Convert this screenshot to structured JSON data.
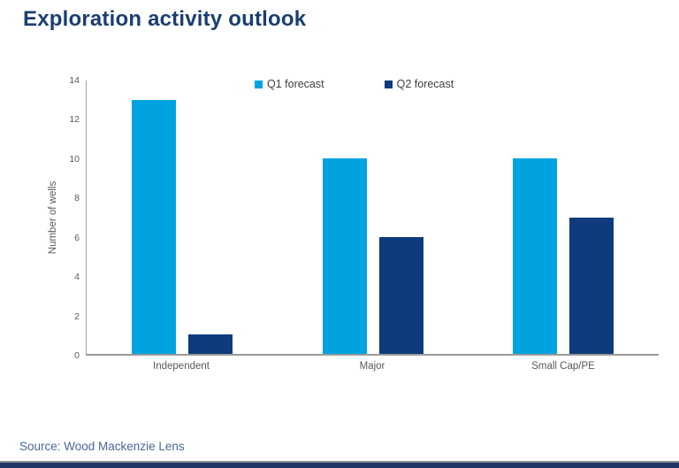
{
  "title": "Exploration activity outlook",
  "source": "Source: Wood Mackenzie Lens",
  "colors": {
    "title_navy": "#1a3e72",
    "q1_light_blue": "#00a3e0",
    "q2_dark_navy": "#0d3b7d",
    "axis_gray": "#9a9a9a",
    "text_gray": "#595959",
    "source_blue": "#47689a",
    "footer_strip_navy": "#1f3563"
  },
  "chart_data": {
    "type": "bar",
    "title": "Exploration activity outlook",
    "categories": [
      "Independent",
      "Major",
      "Small Cap/PE"
    ],
    "series": [
      {
        "name": "Q1 forecast",
        "color": "#00a3e0",
        "values": [
          13,
          10,
          10
        ]
      },
      {
        "name": "Q2 forecast",
        "color": "#0d3b7d",
        "values": [
          1,
          6,
          7
        ]
      }
    ],
    "xlabel": "",
    "ylabel": "Number of wells",
    "ylim": [
      0,
      14
    ],
    "yticks": [
      0,
      2,
      4,
      6,
      8,
      10,
      12,
      14
    ],
    "legend_position": "top",
    "grid": false
  }
}
